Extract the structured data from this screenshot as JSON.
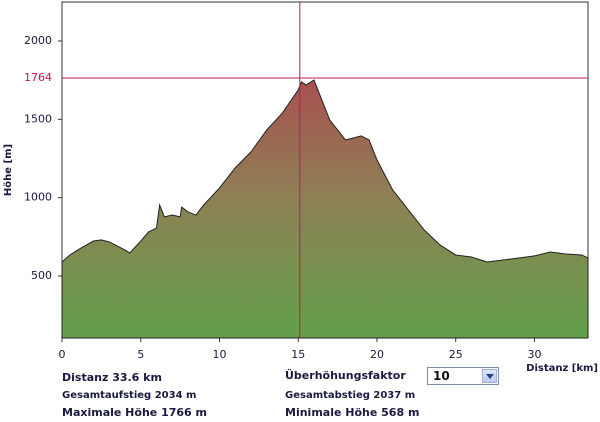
{
  "chart_data": {
    "type": "area",
    "x": [
      0,
      0.5,
      1,
      2,
      2.5,
      3,
      4,
      4.3,
      5,
      5.5,
      6,
      6.2,
      6.5,
      7,
      7.5,
      7.6,
      8,
      8.5,
      9,
      10,
      11,
      12,
      13,
      14,
      15,
      15.2,
      15.5,
      16,
      16.5,
      17,
      17.5,
      18,
      18.5,
      19,
      19.5,
      20,
      21,
      22,
      23,
      24,
      25,
      26,
      27,
      28,
      29,
      30,
      31,
      32,
      33,
      33.4
    ],
    "values": [
      589,
      634,
      666,
      723,
      730,
      717,
      666,
      647,
      723,
      781,
      806,
      953,
      877,
      889,
      877,
      940,
      909,
      889,
      953,
      1062,
      1190,
      1292,
      1432,
      1541,
      1688,
      1739,
      1720,
      1751,
      1624,
      1496,
      1432,
      1368,
      1381,
      1394,
      1368,
      1241,
      1049,
      921,
      794,
      698,
      634,
      621,
      589,
      602,
      615,
      628,
      653,
      640,
      634,
      615
    ],
    "xlim": [
      0,
      33.4
    ],
    "ylim": [
      104,
      2249
    ],
    "xticks": [
      0,
      5,
      10,
      15,
      20,
      25,
      30
    ],
    "yticks": [
      500,
      1000,
      1500,
      2000
    ],
    "x_label": "Distanz [km]",
    "y_label": "Höhe [m]",
    "crosshair": {
      "x": 15.1,
      "y": 1764
    }
  },
  "info": {
    "distance": "Distanz 33.6 km",
    "ascent": "Gesamtaufstieg  2034 m",
    "max": "Maximale Höhe  1766 m",
    "factor_label": "Überhöhungsfaktor",
    "factor": "10",
    "descent": "Gesamtabstieg  2037 m",
    "min": "Minimale Höhe  568 m"
  }
}
